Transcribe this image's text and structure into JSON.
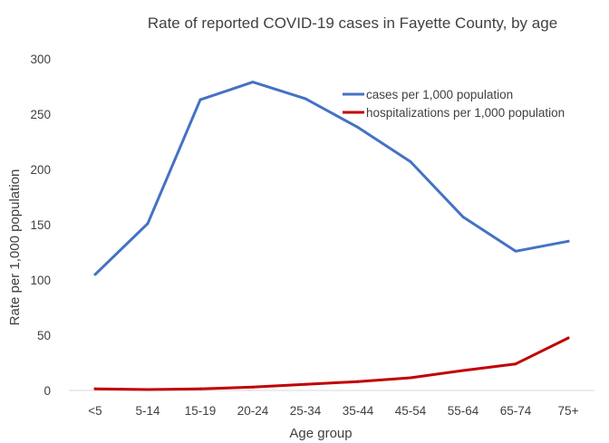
{
  "chart_data": {
    "type": "line",
    "title": "Rate of reported COVID-19 cases in Fayette County, by age",
    "xlabel": "Age group",
    "ylabel": "Rate per 1,000 population",
    "categories": [
      "<5",
      "5-14",
      "15-19",
      "20-24",
      "25-34",
      "35-44",
      "45-54",
      "55-64",
      "65-74",
      "75+"
    ],
    "ylim": [
      0,
      300
    ],
    "yticks": [
      0,
      50,
      100,
      150,
      200,
      250,
      300
    ],
    "grid": false,
    "legend_position": "top-right",
    "series": [
      {
        "name": "cases per 1,000 population",
        "color": "#4472c4",
        "values": [
          105,
          151,
          263,
          279,
          264,
          238,
          207,
          157,
          126,
          135
        ]
      },
      {
        "name": "hospitalizations per 1,000 population",
        "color": "#c00000",
        "values": [
          1.5,
          0.8,
          1.5,
          3.0,
          5.5,
          8.0,
          11.5,
          18.0,
          24.0,
          47.5
        ]
      }
    ]
  }
}
